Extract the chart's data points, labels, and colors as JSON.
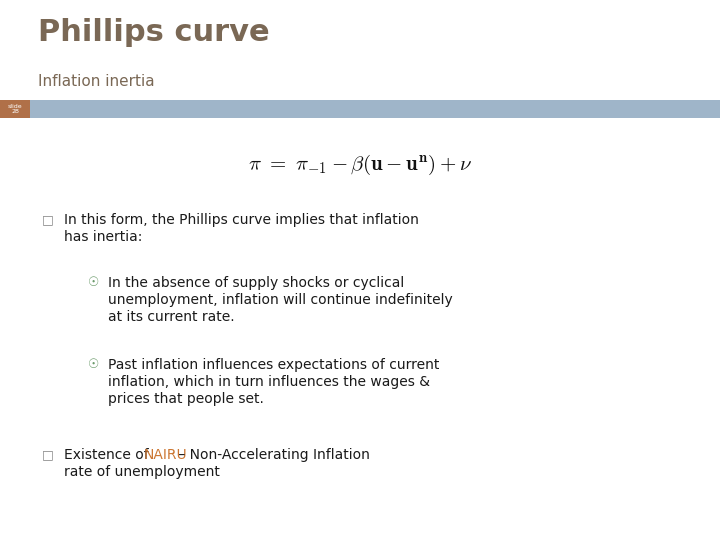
{
  "title": "Phillips curve",
  "subtitle": "Inflation inertia",
  "slide_label_line1": "slide",
  "slide_label_line2": "28",
  "title_color": "#7a6855",
  "subtitle_color": "#7a6855",
  "slide_bar_color": "#9fb5c9",
  "slide_label_bg": "#b07048",
  "background_color": "#ffffff",
  "formula": "$\\pi\\ =\\ \\pi_{-1} - \\beta(\\mathbf{u} - \\mathbf{u}^{\\mathbf{n}}) + \\nu$",
  "bullet_color": "#888888",
  "sub_bullet_color": "#6a9a6a",
  "nairu_color": "#cc7733",
  "text_color": "#1a1a1a",
  "bullet1_line1": "In this form, the Phillips curve implies that inflation",
  "bullet1_line2": "has inertia:",
  "sub_bullet1_line1": "In the absence of supply shocks or cyclical",
  "sub_bullet1_line2": "unemployment, inflation will continue indefinitely",
  "sub_bullet1_line3": "at its current rate.",
  "sub_bullet2_line1": "Past inflation influences expectations of current",
  "sub_bullet2_line2": "inflation, which in turn influences the wages &",
  "sub_bullet2_line3": "prices that people set.",
  "bullet2_prefix": "Existence of ",
  "bullet2_nairu": "NAIRU",
  "bullet2_suffix": " – Non-Accelerating Inflation",
  "bullet2_line2": "rate of unemployment"
}
